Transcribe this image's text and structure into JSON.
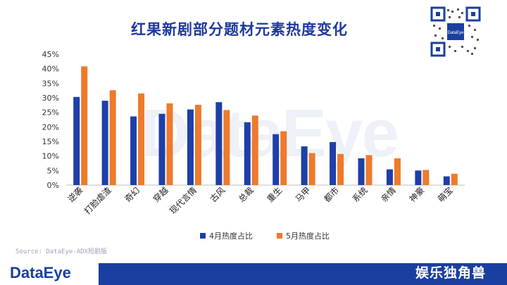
{
  "title": "红果新剧部分题材元素热度变化",
  "watermark": "DataEye",
  "source": "Source: DataEye-ADX短剧版",
  "logo": "DataEye",
  "brand": "娱乐独角兽",
  "colors": {
    "april": "#1e3fa8",
    "may": "#ee7a2c",
    "title": "#1f3a9e"
  },
  "chart_data": {
    "type": "bar",
    "categories": [
      "逆袭",
      "打脸虐渣",
      "奇幻",
      "穿越",
      "现代言情",
      "古风",
      "总裁",
      "重生",
      "马甲",
      "都市",
      "系统",
      "亲情",
      "神豪",
      "萌宝"
    ],
    "series": [
      {
        "name": "4月热度占比",
        "values": [
          30.3,
          29.0,
          23.6,
          24.5,
          26.0,
          28.5,
          21.6,
          17.5,
          13.3,
          14.8,
          9.2,
          5.4,
          5.0,
          3.0
        ]
      },
      {
        "name": "5月热度占比",
        "values": [
          40.8,
          32.6,
          31.5,
          28.1,
          27.6,
          25.8,
          23.9,
          18.5,
          11.0,
          10.7,
          10.3,
          9.2,
          5.2,
          3.9
        ]
      }
    ],
    "yticks": [
      "0%",
      "5%",
      "10%",
      "15%",
      "20%",
      "25%",
      "30%",
      "35%",
      "40%",
      "45%"
    ],
    "ylim": [
      0,
      45
    ],
    "legend": "bottom-center"
  }
}
